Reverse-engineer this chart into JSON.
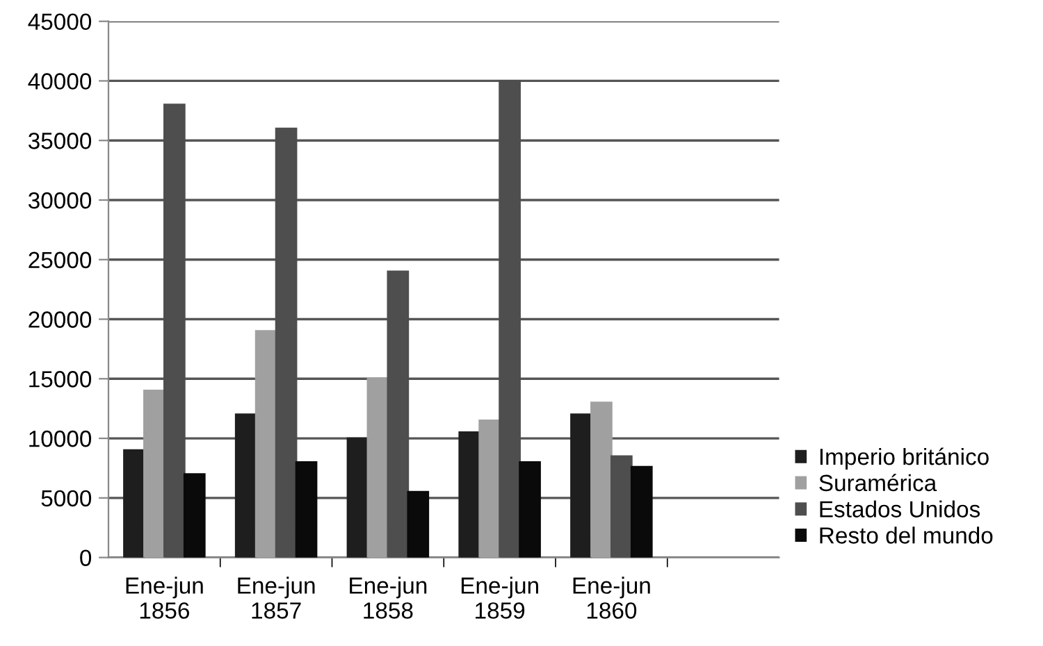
{
  "chart_data": {
    "type": "bar",
    "categories": [
      "Ene-jun\n1856",
      "Ene-jun\n1857",
      "Ene-jun\n1858",
      "Ene-jun\n1859",
      "Ene-jun\n1860",
      null
    ],
    "series": [
      {
        "name": "Imperio británico",
        "color": "#1e1e1e",
        "values": [
          9000,
          12000,
          10000,
          10500,
          12000,
          null
        ]
      },
      {
        "name": "Suramérica",
        "color": "#a0a0a0",
        "values": [
          14000,
          19000,
          15000,
          11500,
          13000,
          null
        ]
      },
      {
        "name": "Estados Unidos",
        "color": "#4e4e4e",
        "values": [
          38000,
          36000,
          24000,
          40000,
          8500,
          null
        ]
      },
      {
        "name": "Resto del mundo",
        "color": "#0a0a0a",
        "values": [
          7000,
          8000,
          5500,
          8000,
          7600,
          null
        ]
      }
    ],
    "ylim": [
      0,
      45000
    ],
    "yticks": [
      0,
      5000,
      10000,
      15000,
      20000,
      25000,
      30000,
      35000,
      40000,
      45000
    ],
    "grid": "y",
    "legend": "bottom right"
  }
}
